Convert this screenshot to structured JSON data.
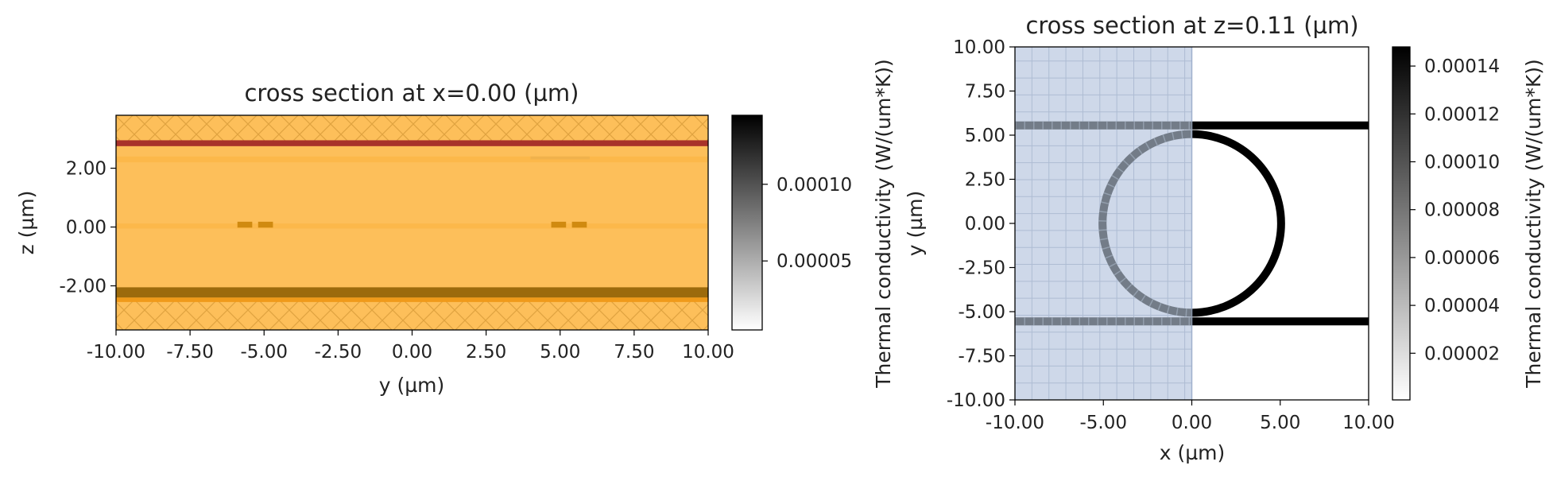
{
  "colors": {
    "background_fill": "#fdbf5a",
    "slab_light": "#fcb84a",
    "red_layer": "#a8322a",
    "dark_layer": "#9c6a0c",
    "orange_layer": "#f09a1a",
    "pad": "#d08a10",
    "simulation_region": "#c7d3e6",
    "ring_black": "#000000",
    "ring_gray": "#737c88"
  },
  "chart_data": [
    {
      "type": "heatmap",
      "title": "cross section at x=0.00 (µm)",
      "xlabel": "y (µm)",
      "ylabel": "z (µm)",
      "xlim": [
        -10,
        10
      ],
      "ylim": [
        -3.5,
        3.8
      ],
      "xticks": [
        "-10.00",
        "-7.50",
        "-5.00",
        "-2.50",
        "0.00",
        "2.50",
        "5.00",
        "7.50",
        "10.00"
      ],
      "xtick_values": [
        -10,
        -7.5,
        -5,
        -2.5,
        0,
        2.5,
        5,
        7.5,
        10
      ],
      "yticks": [
        "2.00",
        "0.00",
        "-2.00"
      ],
      "ytick_values": [
        2,
        0,
        -2
      ],
      "hatched_regions_z": [
        [
          2.9,
          3.8
        ],
        [
          -3.5,
          -2.5
        ]
      ],
      "layers": [
        {
          "z": [
            2.75,
            2.95
          ],
          "role": "red_layer"
        },
        {
          "z": [
            2.2,
            2.4
          ],
          "role": "slab_light"
        },
        {
          "z": [
            -0.05,
            0.12
          ],
          "role": "slab_light"
        },
        {
          "z": [
            -2.4,
            -2.05
          ],
          "role": "dark_layer"
        },
        {
          "z": [
            -2.55,
            -2.4
          ],
          "role": "orange_layer"
        }
      ],
      "pads": [
        {
          "y": [
            -5.9,
            -5.4
          ],
          "z": [
            -0.02,
            0.18
          ]
        },
        {
          "y": [
            -5.2,
            -4.7
          ],
          "z": [
            -0.02,
            0.18
          ]
        },
        {
          "y": [
            4.7,
            5.2
          ],
          "z": [
            -0.02,
            0.18
          ]
        },
        {
          "y": [
            5.4,
            5.9
          ],
          "z": [
            -0.02,
            0.18
          ]
        }
      ],
      "colorbar": {
        "ticks": [
          "0.00010",
          "0.00005"
        ],
        "tick_values": [
          0.0001,
          5e-05
        ],
        "range": [
          5e-06,
          0.000145
        ],
        "label": ""
      }
    },
    {
      "type": "heatmap",
      "title": "cross section at z=0.11 (µm)",
      "xlabel": "x (µm)",
      "ylabel": "y (µm)",
      "xlim": [
        -10,
        10
      ],
      "ylim": [
        -10,
        10
      ],
      "xticks": [
        "-10.00",
        "-5.00",
        "0.00",
        "5.00",
        "10.00"
      ],
      "xtick_values": [
        -10,
        -5,
        0,
        5,
        10
      ],
      "yticks": [
        "10.00",
        "7.50",
        "5.00",
        "2.50",
        "0.00",
        "-2.50",
        "-5.00",
        "-7.50",
        "-10.00"
      ],
      "ytick_values": [
        10,
        7.5,
        5,
        2.5,
        0,
        -2.5,
        -5,
        -7.5,
        -10
      ],
      "ring": {
        "center": [
          0,
          0
        ],
        "radius": 5.05,
        "width": 0.5
      },
      "bus_waveguides_y": [
        5.55,
        -5.55
      ],
      "simulation_region_x": [
        -10,
        0
      ],
      "colorbar": {
        "ticks": [
          "0.00014",
          "0.00012",
          "0.00010",
          "0.00008",
          "0.00006",
          "0.00004",
          "0.00002"
        ],
        "tick_values": [
          0.00014,
          0.00012,
          0.0001,
          8e-05,
          6e-05,
          4e-05,
          2e-05
        ],
        "range": [
          5e-07,
          0.000148
        ],
        "label": "Thermal conductivity (W/(um*K))"
      },
      "left_label": "Thermal conductivity (W/(um*K))"
    }
  ]
}
